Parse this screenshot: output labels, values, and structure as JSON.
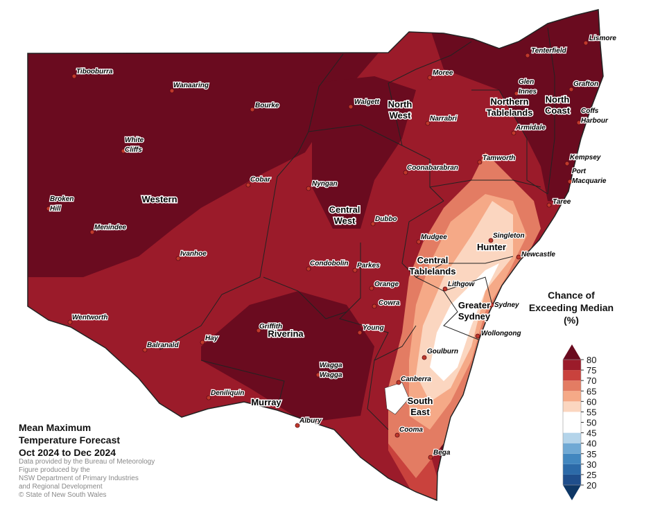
{
  "title": [
    "Mean Maximum",
    "Temperature Forecast",
    "Oct 2024 to Dec 2024"
  ],
  "credits": [
    "Data provided by the Bureau of Meteorology",
    "Figure produced by the",
    "NSW Department of Primary Industries",
    "and Regional Development",
    "© State of New South Wales"
  ],
  "regions": [
    [
      "Western"
    ],
    [
      "North",
      "West"
    ],
    [
      "Northern",
      "Tablelands"
    ],
    [
      "North",
      "Coast"
    ],
    [
      "Central",
      "West"
    ],
    [
      "Hunter"
    ],
    [
      "Central",
      "Tablelands"
    ],
    [
      "Greater",
      "Sydney"
    ],
    [
      "Riverina"
    ],
    [
      "Murray"
    ],
    [
      "South",
      "East"
    ]
  ],
  "towns": [
    [
      "Tibooburra"
    ],
    [
      "Wanaaring"
    ],
    [
      "Bourke"
    ],
    [
      "White",
      "Cliffs"
    ],
    [
      "Broken",
      "Hill"
    ],
    [
      "Menindee"
    ],
    [
      "Cobar"
    ],
    [
      "Ivanhoe"
    ],
    [
      "Wentworth"
    ],
    [
      "Balranald"
    ],
    [
      "Hay"
    ],
    [
      "Deniliquin"
    ],
    [
      "Albury"
    ],
    [
      "Wagga",
      "Wagga"
    ],
    [
      "Griffith"
    ],
    [
      "Condobolin"
    ],
    [
      "Parkes"
    ],
    [
      "Nyngan"
    ],
    [
      "Walgett"
    ],
    [
      "Moree"
    ],
    [
      "Narrabri"
    ],
    [
      "Coonabarabran"
    ],
    [
      "Dubbo"
    ],
    [
      "Mudgee"
    ],
    [
      "Orange"
    ],
    [
      "Cowra"
    ],
    [
      "Young"
    ],
    [
      "Lithgow"
    ],
    [
      "Goulburn"
    ],
    [
      "Canberra"
    ],
    [
      "Cooma"
    ],
    [
      "Bega"
    ],
    [
      "Wollongong"
    ],
    [
      "Sydney"
    ],
    [
      "Newcastle"
    ],
    [
      "Singleton"
    ],
    [
      "Taree"
    ],
    [
      "Port",
      "Macquarie"
    ],
    [
      "Kempsey"
    ],
    [
      "Coffs",
      "Harbour"
    ],
    [
      "Grafton"
    ],
    [
      "Armidale"
    ],
    [
      "Glen",
      "Innes"
    ],
    [
      "Tamworth"
    ],
    [
      "Tenterfield"
    ],
    [
      "Lismore"
    ]
  ],
  "legend": {
    "title": [
      "Chance of",
      "Exceeding Median",
      "(%)"
    ],
    "ticks": [
      20,
      25,
      30,
      35,
      40,
      45,
      50,
      55,
      60,
      65,
      70,
      75,
      80
    ],
    "colors": [
      "#1f4e8c",
      "#2c6aa8",
      "#4287bf",
      "#70a9d4",
      "#b4d4ea",
      "#ffffff",
      "#ffffff",
      "#fbd6c0",
      "#f5a987",
      "#e37c63",
      "#c9423d",
      "#9b1b2a"
    ],
    "under_color": "#0e3766",
    "over_color": "#6a0b1f"
  }
}
